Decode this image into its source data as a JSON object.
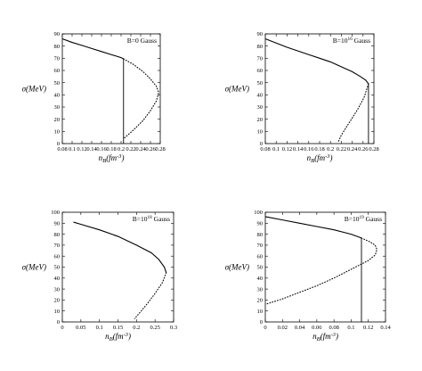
{
  "chart_data": [
    {
      "type": "line",
      "annotation": "B=0 Gauss",
      "xlabel": "n_B(fm^-3)",
      "ylabel": "σ(MeV)",
      "xlim": [
        0.08,
        0.28
      ],
      "ylim": [
        0,
        90
      ],
      "xticks": [
        "0.08",
        "0.1",
        "0.12",
        "0.14",
        "0.16",
        "0.18",
        "0.2",
        "0.22",
        "0.24",
        "0.26",
        "0.28"
      ],
      "yticks": [
        "0",
        "10",
        "20",
        "30",
        "40",
        "50",
        "60",
        "70",
        "80",
        "90"
      ],
      "series": [
        {
          "style": "solid",
          "x": [
            0.08,
            0.1,
            0.12,
            0.14,
            0.16,
            0.18,
            0.2,
            0.205
          ],
          "y": [
            86,
            83,
            80.6,
            78,
            75.5,
            73,
            70.5,
            69.5
          ]
        },
        {
          "style": "solid",
          "x": [
            0.205,
            0.205
          ],
          "y": [
            69.5,
            0
          ]
        },
        {
          "style": "dotted",
          "x": [
            0.205,
            0.225,
            0.245,
            0.26,
            0.272,
            0.277,
            0.272,
            0.26,
            0.245,
            0.225,
            0.205
          ],
          "y": [
            69.5,
            65,
            59,
            53,
            47,
            42,
            35,
            27,
            19,
            11,
            4
          ]
        }
      ]
    },
    {
      "type": "line",
      "annotation": "B=10^16 Gauss",
      "xlabel": "n_B(fm^-3)",
      "ylabel": "σ(MeV)",
      "xlim": [
        0.08,
        0.28
      ],
      "ylim": [
        0,
        90
      ],
      "xticks": [
        "0.08",
        "0.1",
        "0.12",
        "0.14",
        "0.16",
        "0.18",
        "0.2",
        "0.22",
        "0.24",
        "0.26",
        "0.28"
      ],
      "yticks": [
        "0",
        "10",
        "20",
        "30",
        "40",
        "50",
        "60",
        "70",
        "80",
        "90"
      ],
      "series": [
        {
          "style": "solid",
          "x": [
            0.08,
            0.1,
            0.12,
            0.14,
            0.16,
            0.18,
            0.2,
            0.22,
            0.24,
            0.255,
            0.265,
            0.27
          ],
          "y": [
            86,
            82.5,
            79,
            76,
            73,
            70,
            67,
            63,
            59,
            55,
            52,
            49
          ]
        },
        {
          "style": "solid",
          "x": [
            0.27,
            0.27
          ],
          "y": [
            49,
            0
          ]
        },
        {
          "style": "dotted",
          "x": [
            0.27,
            0.262,
            0.25,
            0.24,
            0.23,
            0.22,
            0.215
          ],
          "y": [
            49,
            38,
            28,
            21,
            14,
            7,
            2
          ]
        }
      ]
    },
    {
      "type": "line",
      "annotation": "B=10^18 Gauss",
      "xlabel": "n_B(fm^-3)",
      "ylabel": "σ(MeV)",
      "xlim": [
        0,
        0.3
      ],
      "ylim": [
        0,
        100
      ],
      "xticks": [
        "0",
        "0.05",
        "0.1",
        "0.15",
        "0.2",
        "0.25",
        "0.3"
      ],
      "yticks": [
        "0",
        "10",
        "20",
        "30",
        "40",
        "50",
        "60",
        "70",
        "80",
        "90",
        "100"
      ],
      "series": [
        {
          "style": "solid",
          "x": [
            0.03,
            0.05,
            0.1,
            0.15,
            0.2,
            0.24,
            0.26,
            0.275,
            0.28
          ],
          "y": [
            91,
            89,
            84,
            78,
            70,
            63,
            57,
            50,
            45
          ]
        },
        {
          "style": "dotted",
          "x": [
            0.28,
            0.27,
            0.25,
            0.23,
            0.21,
            0.195
          ],
          "y": [
            45,
            36,
            26,
            17,
            9,
            3
          ]
        }
      ]
    },
    {
      "type": "line",
      "annotation": "B=10^19 Gauss",
      "xlabel": "n_B(fm^-3)",
      "ylabel": "σ(MeV)",
      "xlim": [
        0,
        0.14
      ],
      "ylim": [
        0,
        100
      ],
      "xticks": [
        "0",
        "0.02",
        "0.04",
        "0.06",
        "0.08",
        "0.1",
        "0.12",
        "0.14"
      ],
      "yticks": [
        "0",
        "10",
        "20",
        "30",
        "40",
        "50",
        "60",
        "70",
        "80",
        "90",
        "100"
      ],
      "series": [
        {
          "style": "solid",
          "x": [
            0,
            0.02,
            0.04,
            0.06,
            0.08,
            0.1,
            0.112
          ],
          "y": [
            96,
            93,
            90,
            87,
            84,
            80,
            76.5
          ]
        },
        {
          "style": "solid",
          "x": [
            0.112,
            0.112
          ],
          "y": [
            76.5,
            0
          ]
        },
        {
          "style": "dotted",
          "x": [
            0.112,
            0.122,
            0.128,
            0.13,
            0.128,
            0.12,
            0.1,
            0.08,
            0.06,
            0.04,
            0.02,
            0
          ],
          "y": [
            76.5,
            73,
            70,
            66,
            61,
            56,
            48,
            40,
            33,
            27,
            21,
            16
          ]
        }
      ]
    }
  ]
}
